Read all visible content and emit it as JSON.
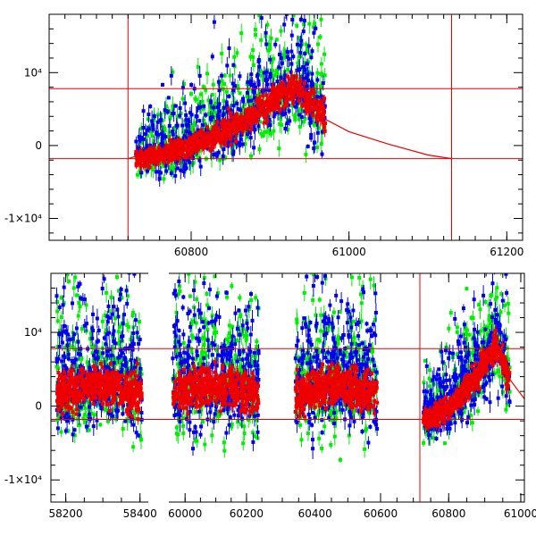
{
  "chart_data": [
    {
      "type": "scatter",
      "panel": "top",
      "title": "",
      "xlabel": "",
      "ylabel": "",
      "xlim": [
        60620,
        61220
      ],
      "ylim": [
        -13000,
        18000
      ],
      "x_ticks": [
        60800,
        61000,
        61200
      ],
      "x_tick_labels": [
        "60800",
        "61000",
        "61200"
      ],
      "y_ticks": [
        -10000,
        0,
        10000
      ],
      "y_tick_labels": [
        "-1×10⁴",
        "0",
        "10⁴"
      ],
      "data_x_range": [
        60730,
        60970
      ],
      "series": [
        {
          "name": "green",
          "color": "#00ee00"
        },
        {
          "name": "blue",
          "color": "#0000ee"
        },
        {
          "name": "red",
          "color": "#ee0000"
        }
      ],
      "model_curve": {
        "color": "#ee0000",
        "peak": {
          "x": 60930,
          "y": 8200
        },
        "points": [
          [
            60720,
            -1800
          ],
          [
            60800,
            700
          ],
          [
            60880,
            4800
          ],
          [
            60930,
            8200
          ],
          [
            60970,
            3600
          ],
          [
            61000,
            1900
          ],
          [
            61050,
            200
          ],
          [
            61100,
            -1300
          ],
          [
            61130,
            -1800
          ]
        ]
      },
      "reference_lines": {
        "horizontal": [
          7800,
          -1800
        ],
        "vertical": [
          60720,
          61130
        ],
        "color": "#ee0000"
      }
    },
    {
      "type": "scatter",
      "panel": "bottom",
      "title": "",
      "xlabel": "",
      "ylabel": "",
      "xlim": [
        58160,
        61010
      ],
      "x_axis": "broken",
      "ylim": [
        -13000,
        18000
      ],
      "x_ticks": [
        58200,
        58400,
        60000,
        60200,
        60400,
        60600,
        60800,
        61000
      ],
      "x_tick_labels": [
        "58200",
        "58400",
        "60000",
        "60200",
        "60400",
        "60600",
        "60800",
        "61000"
      ],
      "y_ticks": [
        -10000,
        0,
        10000
      ],
      "y_tick_labels": [
        "-1×10⁴",
        "0",
        "10⁴"
      ],
      "segments": [
        {
          "x_start": 58160,
          "x_end": 58420,
          "data_x_range": [
            58175,
            58405
          ],
          "trend": "seasonal"
        },
        {
          "x_start": 59950,
          "x_end": 60270,
          "data_x_range": [
            59960,
            60240
          ],
          "trend": "seasonal"
        },
        {
          "x_start": 60270,
          "x_end": 60720,
          "data_x_range": [
            60340,
            60590
          ],
          "trend": "seasonal"
        },
        {
          "x_start": 60720,
          "x_end": 61010,
          "data_x_range": [
            60730,
            60970
          ],
          "trend": "rise-to-peak"
        }
      ],
      "series": [
        {
          "name": "green",
          "color": "#00ee00"
        },
        {
          "name": "blue",
          "color": "#0000ee"
        },
        {
          "name": "red",
          "color": "#ee0000"
        }
      ],
      "reference_lines": {
        "horizontal": [
          7800,
          -1800
        ],
        "vertical": [
          60720
        ],
        "color": "#ee0000"
      }
    }
  ]
}
